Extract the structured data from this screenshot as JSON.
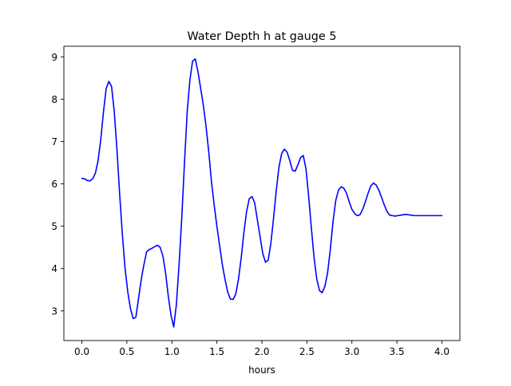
{
  "chart_data": {
    "type": "line",
    "title": "Water Depth h at gauge 5",
    "xlabel": "hours",
    "ylabel": "",
    "xlim": [
      -0.2,
      4.2
    ],
    "ylim": [
      2.3,
      9.25
    ],
    "xticks": [
      0.0,
      0.5,
      1.0,
      1.5,
      2.0,
      2.5,
      3.0,
      3.5,
      4.0
    ],
    "xtick_labels": [
      "0.0",
      "0.5",
      "1.0",
      "1.5",
      "2.0",
      "2.5",
      "3.0",
      "3.5",
      "4.0"
    ],
    "yticks": [
      3,
      4,
      5,
      6,
      7,
      8,
      9
    ],
    "ytick_labels": [
      "3",
      "4",
      "5",
      "6",
      "7",
      "8",
      "9"
    ],
    "grid": false,
    "series": [
      {
        "color": "#0000ff",
        "x": [
          0.0,
          0.03,
          0.06,
          0.09,
          0.12,
          0.15,
          0.18,
          0.21,
          0.24,
          0.27,
          0.3,
          0.33,
          0.36,
          0.39,
          0.42,
          0.45,
          0.48,
          0.51,
          0.54,
          0.57,
          0.6,
          0.63,
          0.66,
          0.69,
          0.72,
          0.75,
          0.78,
          0.81,
          0.84,
          0.87,
          0.9,
          0.93,
          0.96,
          0.99,
          1.02,
          1.05,
          1.08,
          1.11,
          1.14,
          1.17,
          1.2,
          1.23,
          1.26,
          1.29,
          1.32,
          1.35,
          1.38,
          1.41,
          1.44,
          1.47,
          1.5,
          1.53,
          1.56,
          1.59,
          1.62,
          1.65,
          1.68,
          1.71,
          1.74,
          1.77,
          1.8,
          1.83,
          1.86,
          1.89,
          1.92,
          1.95,
          1.98,
          2.01,
          2.04,
          2.07,
          2.1,
          2.13,
          2.16,
          2.19,
          2.22,
          2.25,
          2.28,
          2.31,
          2.34,
          2.37,
          2.4,
          2.43,
          2.46,
          2.49,
          2.52,
          2.55,
          2.58,
          2.61,
          2.64,
          2.67,
          2.7,
          2.73,
          2.76,
          2.79,
          2.82,
          2.85,
          2.88,
          2.91,
          2.94,
          2.97,
          3.0,
          3.03,
          3.06,
          3.09,
          3.12,
          3.15,
          3.18,
          3.21,
          3.24,
          3.27,
          3.3,
          3.33,
          3.36,
          3.39,
          3.42,
          3.45,
          3.48,
          3.51,
          3.54,
          3.57,
          3.6,
          3.63,
          3.66,
          3.69,
          3.72,
          3.75,
          3.78,
          3.81,
          3.84,
          3.87,
          3.9,
          3.93,
          3.96,
          3.99,
          4.0
        ],
        "y": [
          6.13,
          6.12,
          6.08,
          6.07,
          6.12,
          6.25,
          6.55,
          7.05,
          7.7,
          8.25,
          8.42,
          8.3,
          7.7,
          6.8,
          5.75,
          4.8,
          4.0,
          3.45,
          3.05,
          2.82,
          2.85,
          3.3,
          3.75,
          4.1,
          4.4,
          4.45,
          4.48,
          4.52,
          4.55,
          4.5,
          4.3,
          3.9,
          3.35,
          2.9,
          2.62,
          3.15,
          4.1,
          5.2,
          6.5,
          7.7,
          8.45,
          8.9,
          8.95,
          8.65,
          8.25,
          7.85,
          7.35,
          6.75,
          6.05,
          5.5,
          5.0,
          4.55,
          4.1,
          3.75,
          3.45,
          3.28,
          3.27,
          3.4,
          3.75,
          4.25,
          4.85,
          5.35,
          5.65,
          5.7,
          5.55,
          5.15,
          4.75,
          4.35,
          4.15,
          4.2,
          4.6,
          5.2,
          5.85,
          6.4,
          6.72,
          6.82,
          6.75,
          6.55,
          6.32,
          6.3,
          6.45,
          6.62,
          6.67,
          6.35,
          5.7,
          4.95,
          4.25,
          3.75,
          3.48,
          3.43,
          3.58,
          3.9,
          4.45,
          5.1,
          5.6,
          5.85,
          5.93,
          5.9,
          5.78,
          5.58,
          5.4,
          5.3,
          5.25,
          5.27,
          5.4,
          5.58,
          5.78,
          5.95,
          6.02,
          5.97,
          5.85,
          5.68,
          5.5,
          5.35,
          5.26,
          5.25,
          5.24,
          5.25,
          5.26,
          5.27,
          5.28,
          5.27,
          5.26,
          5.25,
          5.25,
          5.25,
          5.25,
          5.25,
          5.25,
          5.25,
          5.25,
          5.25,
          5.25,
          5.25,
          5.25
        ]
      }
    ]
  }
}
